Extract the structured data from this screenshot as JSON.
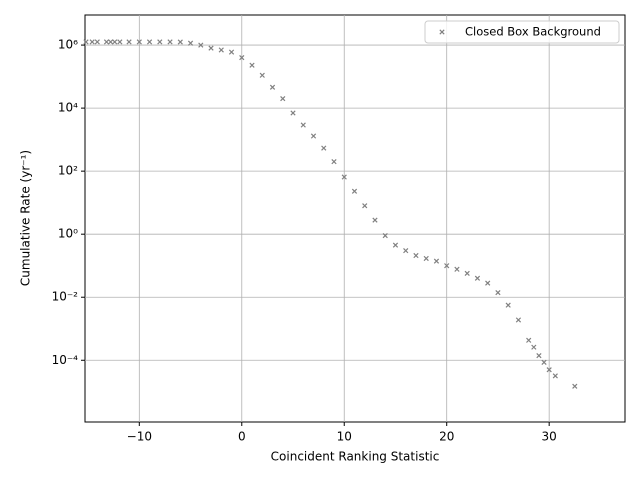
{
  "chart_data": {
    "type": "scatter",
    "xlabel": "Coincident Ranking Statistic",
    "ylabel": "Cumulative Rate (yr⁻¹)",
    "log_y": true,
    "grid": true,
    "legend": "upper right",
    "marker": "x",
    "xlim": [
      -15.3,
      37.4
    ],
    "ylim": [
      1.1e-06,
      9000000
    ],
    "xticks": [
      {
        "value": -10,
        "label": "−10"
      },
      0,
      10,
      20,
      30
    ],
    "yticks": [
      {
        "value": 0.0001,
        "label": "10⁻⁴"
      },
      {
        "value": 0.01,
        "label": "10⁻²"
      },
      {
        "value": 1,
        "label": "10⁰"
      },
      {
        "value": 100,
        "label": "10²"
      },
      {
        "value": 10000,
        "label": "10⁴"
      },
      {
        "value": 1000000,
        "label": "10⁶"
      }
    ],
    "series": [
      {
        "name": "Closed Box Background",
        "color": "#808080",
        "x": [
          -15.2,
          -14.6,
          -14.1,
          -13.2,
          -12.8,
          -12.4,
          -11.9,
          -11,
          -10,
          -9,
          -8,
          -7,
          -6,
          -5,
          -4,
          -3,
          -2,
          -1,
          0,
          1,
          2,
          3,
          4,
          5,
          6,
          7,
          8,
          9,
          10,
          11,
          12,
          13,
          14,
          15,
          16,
          17,
          18,
          19,
          20,
          21,
          22,
          23,
          24,
          25,
          26,
          27,
          28,
          28.5,
          29,
          29.5,
          30,
          30.6,
          32.5
        ],
        "values": [
          1260000,
          1260000,
          1260000,
          1260000,
          1260000,
          1260000,
          1260000,
          1260000,
          1260000,
          1260000,
          1260000,
          1260000,
          1250000,
          1150000,
          1000000,
          800000,
          700000,
          600000,
          400000,
          230000,
          110000,
          46000,
          20000,
          7000,
          2900,
          1300,
          540,
          200,
          65,
          23,
          8,
          2.8,
          0.9,
          0.45,
          0.3,
          0.21,
          0.17,
          0.14,
          0.1,
          0.077,
          0.057,
          0.04,
          0.028,
          0.014,
          0.0056,
          0.0019,
          0.00043,
          0.00026,
          0.00014,
          8.6e-05,
          5e-05,
          3.2e-05,
          1.5e-05
        ]
      }
    ]
  }
}
